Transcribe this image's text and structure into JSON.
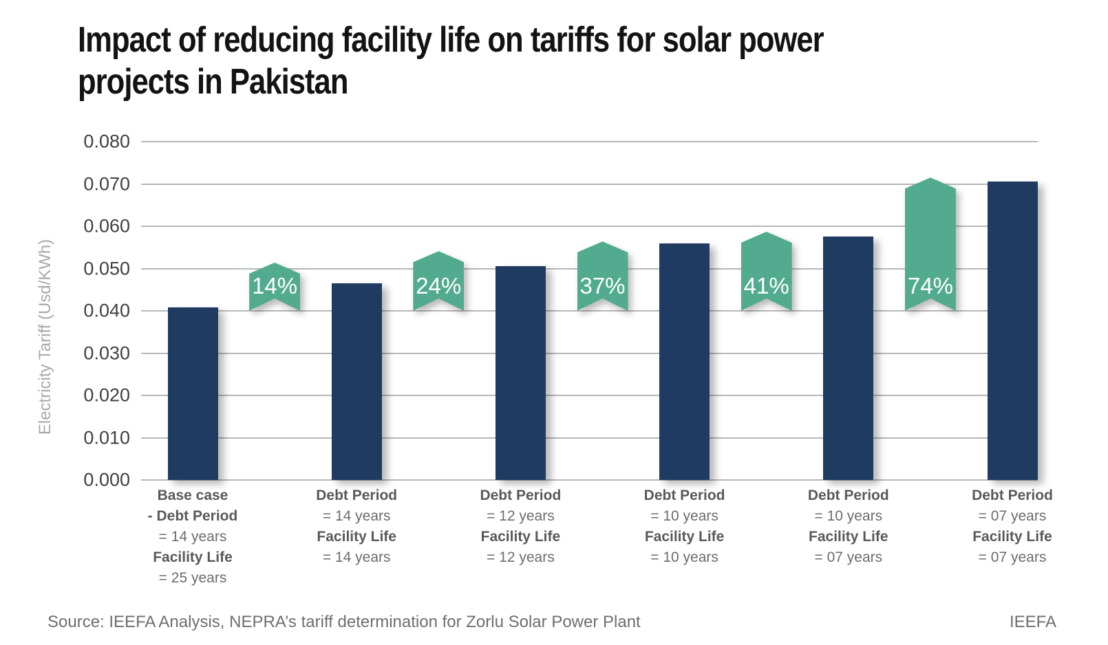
{
  "header": {
    "title": "Impact of reducing facility life on tariffs for solar power\nprojects in Pakistan"
  },
  "footer": {
    "source": "Source: IEEFA Analysis, NEPRA’s tariff determination for Zorlu Solar Power Plant",
    "brand": "IEEFA"
  },
  "chart_data": {
    "type": "bar",
    "title": "Impact of reducing facility life on tariffs for solar power projects in Pakistan",
    "xlabel": "",
    "ylabel": "Electricity Tariff (Usd/KWh)",
    "ylim": [
      0.0,
      0.08
    ],
    "ytick_step": 0.01,
    "ytick_decimals": 3,
    "grid": "horizontal",
    "legend": "none",
    "categories": [
      [
        {
          "text": "Base case",
          "bold": true
        },
        {
          "text": "- Debt Period",
          "bold": true
        },
        {
          "text": "= 14 years",
          "bold": false
        },
        {
          "text": "Facility Life",
          "bold": true
        },
        {
          "text": "= 25 years",
          "bold": false
        }
      ],
      [
        {
          "text": "Debt Period",
          "bold": true
        },
        {
          "text": "= 14 years",
          "bold": false
        },
        {
          "text": "Facility Life",
          "bold": true
        },
        {
          "text": "= 14 years",
          "bold": false
        }
      ],
      [
        {
          "text": "Debt Period",
          "bold": true
        },
        {
          "text": "= 12 years",
          "bold": false
        },
        {
          "text": "Facility Life",
          "bold": true
        },
        {
          "text": "= 12 years",
          "bold": false
        }
      ],
      [
        {
          "text": "Debt Period",
          "bold": true
        },
        {
          "text": "= 10 years",
          "bold": false
        },
        {
          "text": "Facility Life",
          "bold": true
        },
        {
          "text": "= 10 years",
          "bold": false
        }
      ],
      [
        {
          "text": "Debt Period",
          "bold": true
        },
        {
          "text": "= 10 years",
          "bold": false
        },
        {
          "text": "Facility Life",
          "bold": true
        },
        {
          "text": "= 07 years",
          "bold": false
        }
      ],
      [
        {
          "text": "Debt Period",
          "bold": true
        },
        {
          "text": "= 07 years",
          "bold": false
        },
        {
          "text": "Facility Life",
          "bold": true
        },
        {
          "text": "= 07 years",
          "bold": false
        }
      ]
    ],
    "values": [
      0.0408,
      0.0465,
      0.0506,
      0.0559,
      0.0575,
      0.0706
    ],
    "annotations": [
      {
        "label": "14%",
        "between_bars": [
          1,
          2
        ],
        "arrow_top": 0.0514
      },
      {
        "label": "24%",
        "between_bars": [
          2,
          3
        ],
        "arrow_top": 0.0541
      },
      {
        "label": "37%",
        "between_bars": [
          3,
          4
        ],
        "arrow_top": 0.0564
      },
      {
        "label": "41%",
        "between_bars": [
          4,
          5
        ],
        "arrow_top": 0.0587
      },
      {
        "label": "74%",
        "between_bars": [
          5,
          6
        ],
        "arrow_top": 0.0715
      }
    ],
    "annotation_bottom": 0.04,
    "colors": {
      "bar": "#1f3b61",
      "annotation": "#52ab8e",
      "annotation_text": "#ffffff",
      "gridline": "#b6b7b9"
    }
  }
}
